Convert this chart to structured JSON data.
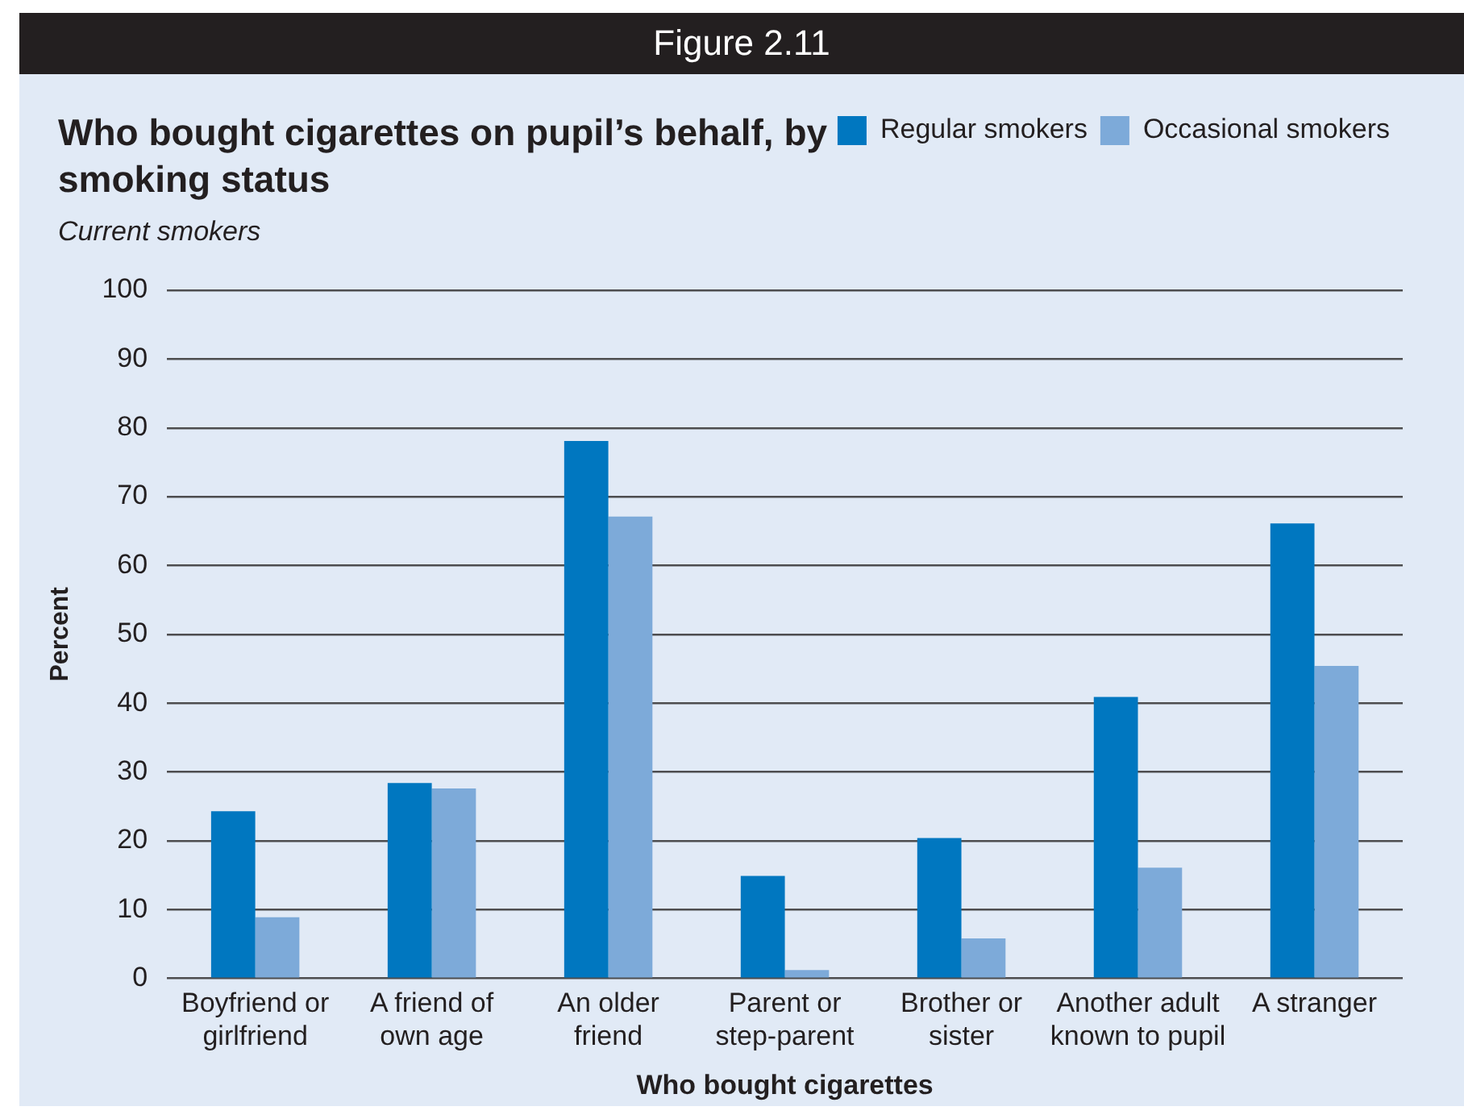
{
  "chart_data": {
    "type": "bar",
    "title": "Who bought cigarettes on pupil’s behalf, by smoking status",
    "subtitle": "Current smokers",
    "annotations": [
      "Figure 2.11"
    ],
    "xlabel": "Who bought cigarettes",
    "ylabel": "Percent",
    "categories": [
      "Boyfriend or girlfriend",
      "A friend of own age",
      "An older friend",
      "Parent or step-parent",
      "Brother or sister",
      "Another adult known to pupil",
      "A stranger"
    ],
    "series": [
      {
        "name": "Regular smokers",
        "color": "#0077c0",
        "values": [
          24.3,
          28.4,
          78.1,
          14.9,
          20.4,
          40.9,
          66.1
        ]
      },
      {
        "name": "Occasional smokers",
        "color": "#7daad9",
        "values": [
          8.9,
          27.6,
          67.1,
          1.2,
          5.8,
          16.1,
          45.4
        ]
      }
    ],
    "ylim": [
      0,
      100
    ],
    "yticks": [
      0,
      10,
      20,
      30,
      40,
      50,
      60,
      70,
      80,
      90,
      100
    ],
    "grid": "y",
    "legend": "top right"
  }
}
